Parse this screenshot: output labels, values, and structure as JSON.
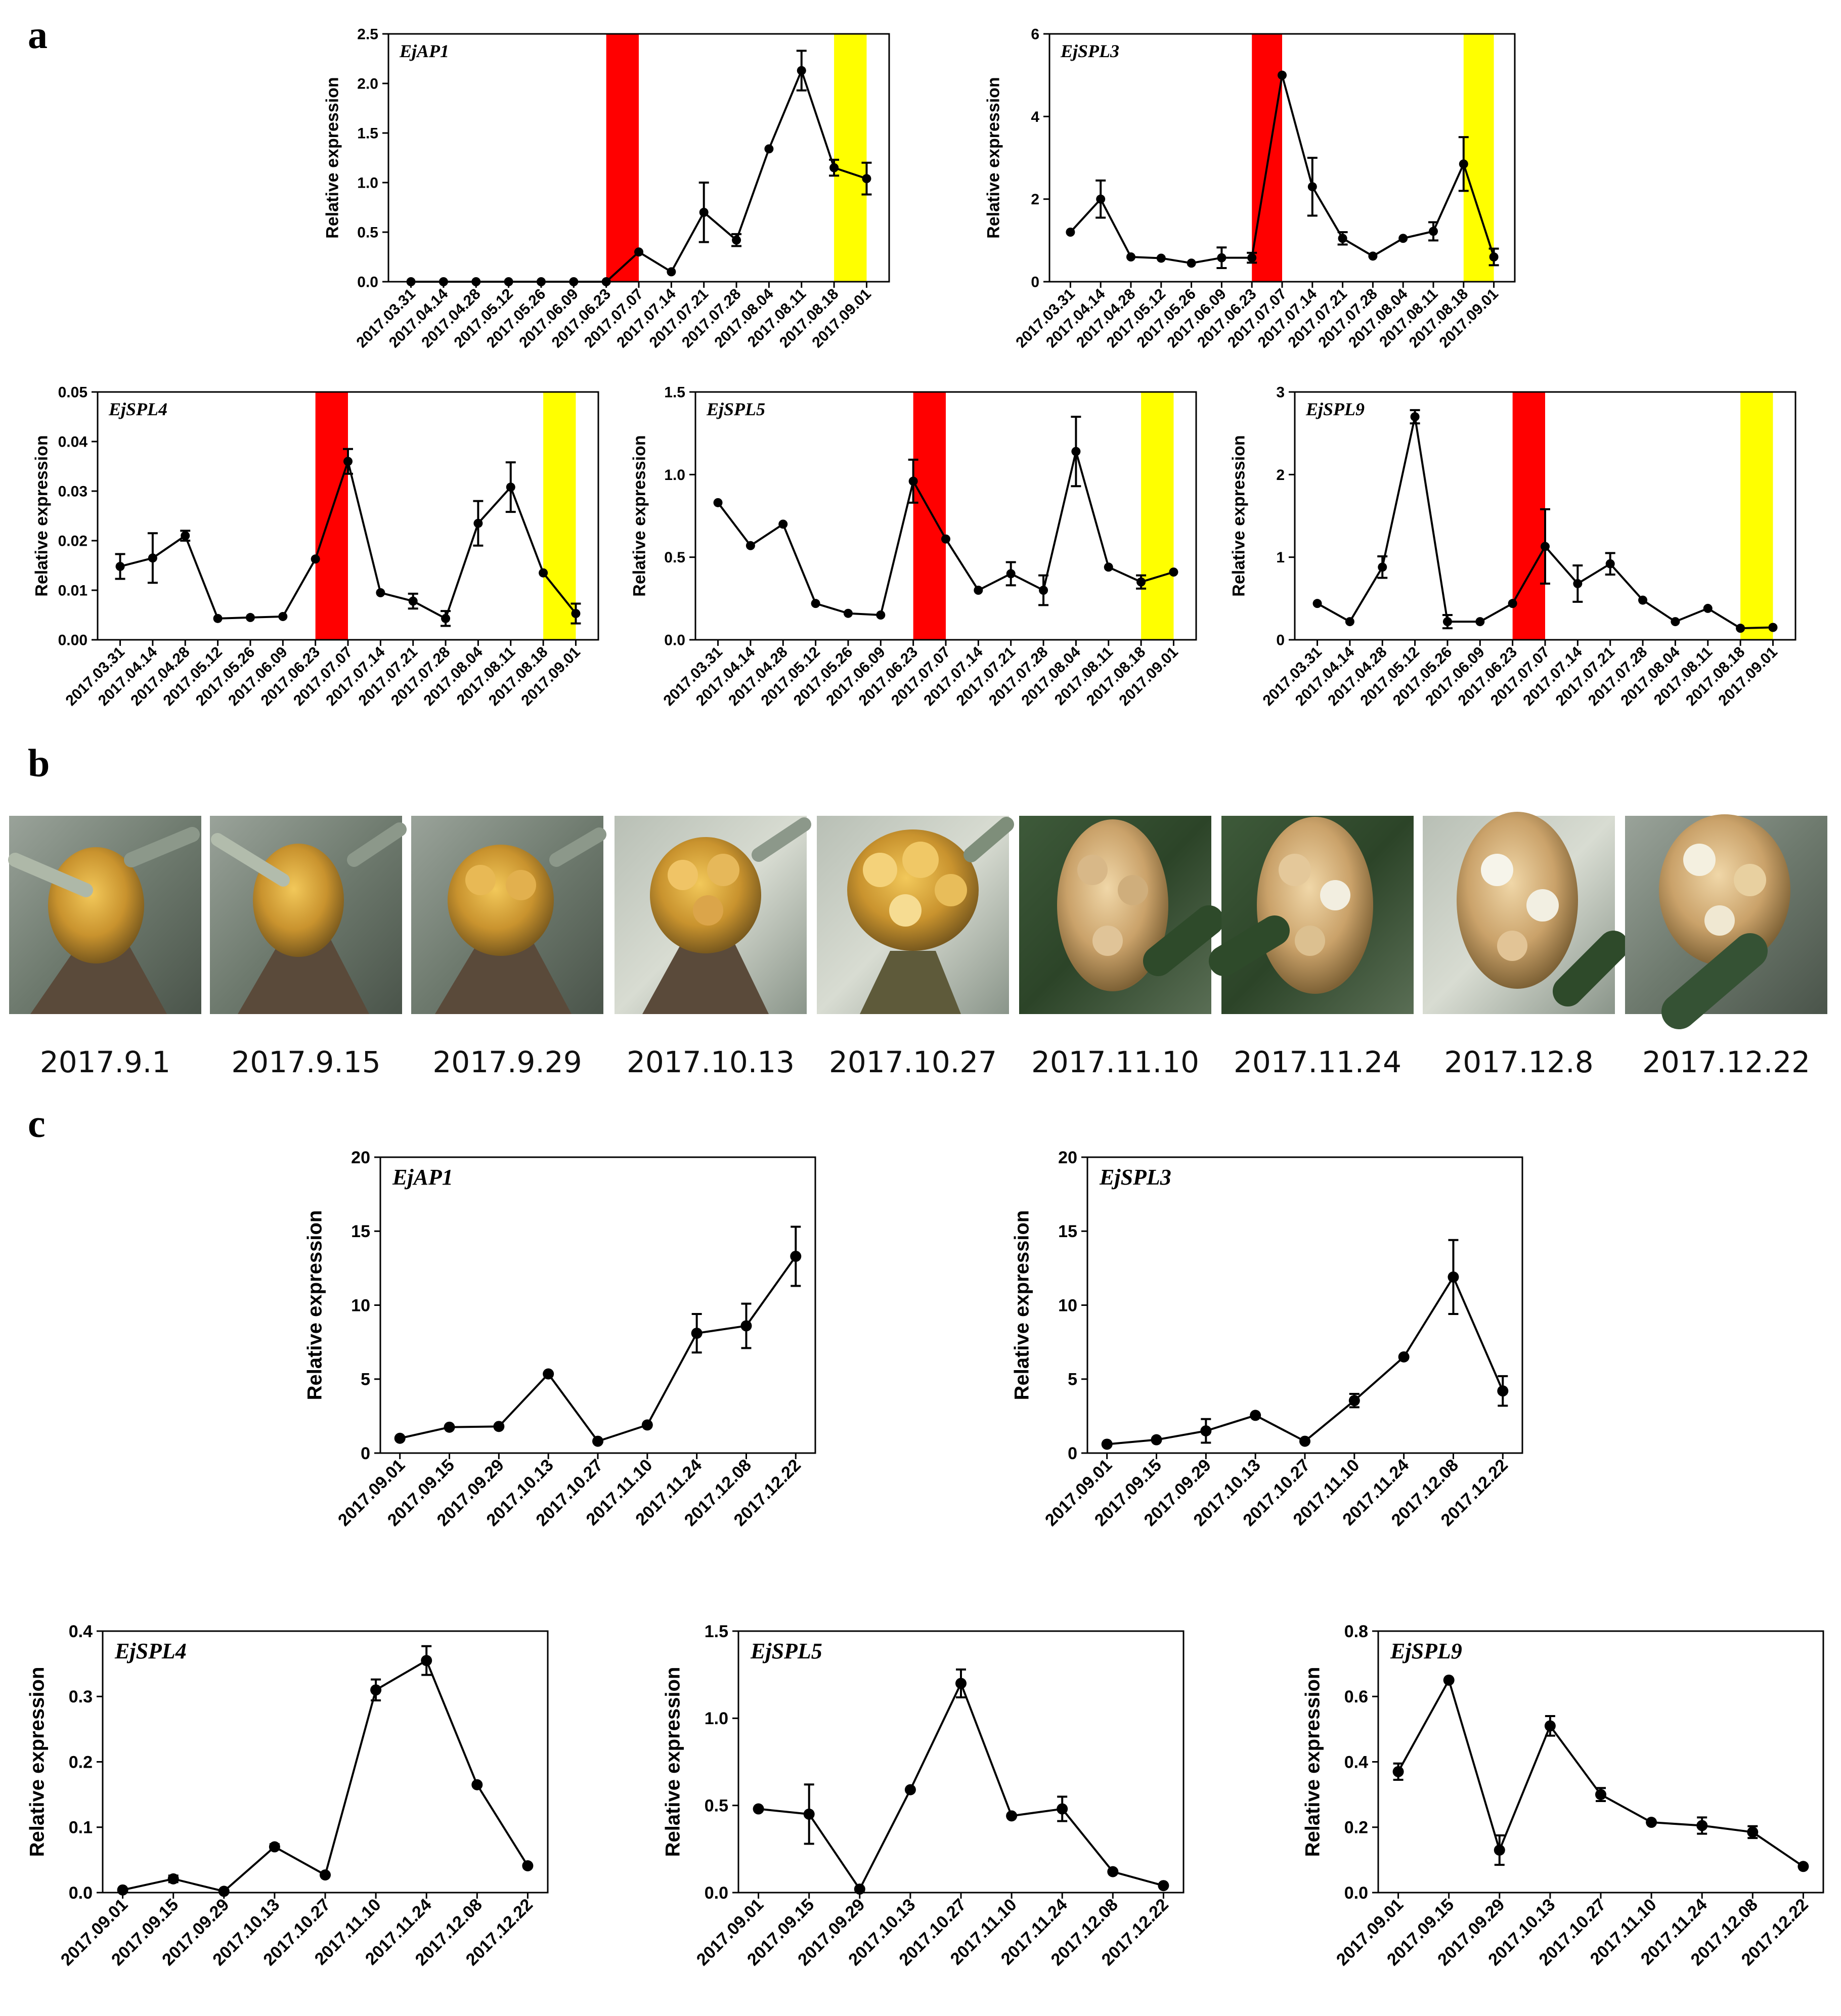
{
  "panel_labels": {
    "a": "a",
    "b": "b",
    "c": "c"
  },
  "colors": {
    "red_band": "#ff0000",
    "yellow_band": "#ffff00",
    "line": "#000000"
  },
  "ylabel": "Relative expression",
  "photos": {
    "captions": [
      "2017.9.1",
      "2017.9.15",
      "2017.9.29",
      "2017.10.13",
      "2017.10.27",
      "2017.11.10",
      "2017.11.24",
      "2017.12.8",
      "2017.12.22"
    ]
  },
  "chart_data": [
    {
      "panel": "a",
      "type": "line",
      "title": "EjAP1",
      "ylabel": "Relative expression",
      "categories": [
        "2017.03.31",
        "2017.04.14",
        "2017.04.28",
        "2017.05.12",
        "2017.05.26",
        "2017.06.09",
        "2017.06.23",
        "2017.07.07",
        "2017.07.14",
        "2017.07.21",
        "2017.07.28",
        "2017.08.04",
        "2017.08.11",
        "2017.08.18",
        "2017.09.01"
      ],
      "values": [
        0,
        0,
        0,
        0,
        0,
        0,
        0,
        0.3,
        0.1,
        0.7,
        0.42,
        1.34,
        2.13,
        1.15,
        1.04
      ],
      "errors": [
        0,
        0,
        0,
        0,
        0,
        0,
        0,
        0,
        0,
        0.3,
        0.06,
        0,
        0.2,
        0.08,
        0.16
      ],
      "ylim": [
        0,
        2.5
      ],
      "yticks": [
        "0.0",
        "0.5",
        "1.0",
        "1.5",
        "2.0",
        "2.5"
      ],
      "shaded": [
        {
          "color": "red",
          "from": "2017.06.23",
          "to": "2017.07.07"
        },
        {
          "color": "yellow",
          "from": "2017.08.18",
          "to": "2017.09.01"
        }
      ]
    },
    {
      "panel": "a",
      "type": "line",
      "title": "EjSPL3",
      "ylabel": "Relative expression",
      "categories": [
        "2017.03.31",
        "2017.04.14",
        "2017.04.28",
        "2017.05.12",
        "2017.05.26",
        "2017.06.09",
        "2017.06.23",
        "2017.07.07",
        "2017.07.14",
        "2017.07.21",
        "2017.07.28",
        "2017.08.04",
        "2017.08.11",
        "2017.08.18",
        "2017.09.01"
      ],
      "values": [
        1.2,
        2.0,
        0.6,
        0.57,
        0.45,
        0.58,
        0.58,
        5.0,
        2.3,
        1.05,
        0.62,
        1.05,
        1.22,
        2.85,
        0.6
      ],
      "errors": [
        0,
        0.45,
        0,
        0,
        0,
        0.25,
        0.12,
        0,
        0.7,
        0.15,
        0,
        0,
        0.22,
        0.65,
        0.2
      ],
      "ylim": [
        0,
        6
      ],
      "yticks": [
        "0",
        "2",
        "4",
        "6"
      ],
      "shaded": [
        {
          "color": "red",
          "from": "2017.06.23",
          "to": "2017.07.07"
        },
        {
          "color": "yellow",
          "from": "2017.08.18",
          "to": "2017.09.01"
        }
      ]
    },
    {
      "panel": "a",
      "type": "line",
      "title": "EjSPL4",
      "ylabel": "Relative expression",
      "categories": [
        "2017.03.31",
        "2017.04.14",
        "2017.04.28",
        "2017.05.12",
        "2017.05.26",
        "2017.06.09",
        "2017.06.23",
        "2017.07.07",
        "2017.07.14",
        "2017.07.21",
        "2017.07.28",
        "2017.08.04",
        "2017.08.11",
        "2017.08.18",
        "2017.09.01"
      ],
      "values": [
        0.0148,
        0.0165,
        0.021,
        0.0043,
        0.0045,
        0.0047,
        0.0163,
        0.036,
        0.0095,
        0.0078,
        0.0043,
        0.0235,
        0.0308,
        0.0135,
        0.0053
      ],
      "errors": [
        0.0025,
        0.005,
        0.001,
        0,
        0,
        0,
        0,
        0.0025,
        0,
        0.0015,
        0.0015,
        0.0045,
        0.005,
        0,
        0.002
      ],
      "ylim": [
        0,
        0.05
      ],
      "yticks": [
        "0.00",
        "0.01",
        "0.02",
        "0.03",
        "0.04",
        "0.05"
      ],
      "shaded": [
        {
          "color": "red",
          "from": "2017.06.23",
          "to": "2017.07.07"
        },
        {
          "color": "yellow",
          "from": "2017.08.18",
          "to": "2017.09.01"
        }
      ]
    },
    {
      "panel": "a",
      "type": "line",
      "title": "EjSPL5",
      "ylabel": "Relative expression",
      "categories": [
        "2017.03.31",
        "2017.04.14",
        "2017.04.28",
        "2017.05.12",
        "2017.05.26",
        "2017.06.09",
        "2017.06.23",
        "2017.07.07",
        "2017.07.14",
        "2017.07.21",
        "2017.07.28",
        "2017.08.04",
        "2017.08.11",
        "2017.08.18",
        "2017.09.01"
      ],
      "values": [
        0.83,
        0.57,
        0.7,
        0.22,
        0.16,
        0.15,
        0.96,
        0.61,
        0.3,
        0.4,
        0.3,
        1.14,
        0.44,
        0.35,
        0.41
      ],
      "errors": [
        0,
        0,
        0,
        0,
        0,
        0,
        0.13,
        0,
        0,
        0.07,
        0.09,
        0.21,
        0,
        0.04,
        0
      ],
      "ylim": [
        0,
        1.5
      ],
      "yticks": [
        "0.0",
        "0.5",
        "1.0",
        "1.5"
      ],
      "shaded": [
        {
          "color": "red",
          "from": "2017.06.23",
          "to": "2017.07.07"
        },
        {
          "color": "yellow",
          "from": "2017.08.18",
          "to": "2017.09.01"
        }
      ]
    },
    {
      "panel": "a",
      "type": "line",
      "title": "EjSPL9",
      "ylabel": "Relative expression",
      "categories": [
        "2017.03.31",
        "2017.04.14",
        "2017.04.28",
        "2017.05.12",
        "2017.05.26",
        "2017.06.09",
        "2017.06.23",
        "2017.07.07",
        "2017.07.14",
        "2017.07.21",
        "2017.07.28",
        "2017.08.04",
        "2017.08.11",
        "2017.08.18",
        "2017.09.01"
      ],
      "values": [
        0.44,
        0.22,
        0.88,
        2.7,
        0.22,
        0.22,
        0.44,
        1.13,
        0.68,
        0.92,
        0.48,
        0.22,
        0.38,
        0.14,
        0.15
      ],
      "errors": [
        0,
        0,
        0.13,
        0.08,
        0.08,
        0,
        0,
        0.45,
        0.22,
        0.13,
        0,
        0,
        0,
        0,
        0
      ],
      "ylim": [
        0,
        3
      ],
      "yticks": [
        "0",
        "1",
        "2",
        "3"
      ],
      "shaded": [
        {
          "color": "red",
          "from": "2017.06.23",
          "to": "2017.07.07"
        },
        {
          "color": "yellow",
          "from": "2017.08.18",
          "to": "2017.09.01"
        }
      ]
    },
    {
      "panel": "c",
      "type": "line",
      "title": "EjAP1",
      "ylabel": "Relative expression",
      "categories": [
        "2017.09.01",
        "2017.09.15",
        "2017.09.29",
        "2017.10.13",
        "2017.10.27",
        "2017.11.10",
        "2017.11.24",
        "2017.12.08",
        "2017.12.22"
      ],
      "values": [
        1.0,
        1.75,
        1.8,
        5.35,
        0.8,
        1.9,
        8.1,
        8.6,
        13.3
      ],
      "errors": [
        0,
        0,
        0,
        0,
        0,
        0,
        1.3,
        1.5,
        2.0
      ],
      "ylim": [
        0,
        20
      ],
      "yticks": [
        "0",
        "5",
        "10",
        "15",
        "20"
      ]
    },
    {
      "panel": "c",
      "type": "line",
      "title": "EjSPL3",
      "ylabel": "Relative expression",
      "categories": [
        "2017.09.01",
        "2017.09.15",
        "2017.09.29",
        "2017.10.13",
        "2017.10.27",
        "2017.11.10",
        "2017.11.24",
        "2017.12.08",
        "2017.12.22"
      ],
      "values": [
        0.6,
        0.9,
        1.5,
        2.55,
        0.8,
        3.55,
        6.5,
        11.9,
        4.2
      ],
      "errors": [
        0,
        0,
        0.8,
        0,
        0,
        0.45,
        0,
        2.5,
        1.0
      ],
      "ylim": [
        0,
        20
      ],
      "yticks": [
        "0",
        "5",
        "10",
        "15",
        "20"
      ]
    },
    {
      "panel": "c",
      "type": "line",
      "title": "EjSPL4",
      "ylabel": "Relative expression",
      "categories": [
        "2017.09.01",
        "2017.09.15",
        "2017.09.29",
        "2017.10.13",
        "2017.10.27",
        "2017.11.10",
        "2017.11.24",
        "2017.12.08",
        "2017.12.22"
      ],
      "values": [
        0.004,
        0.021,
        0.002,
        0.07,
        0.027,
        0.31,
        0.355,
        0.165,
        0.041
      ],
      "errors": [
        0,
        0.005,
        0,
        0.004,
        0,
        0.016,
        0.022,
        0,
        0
      ],
      "ylim": [
        0,
        0.4
      ],
      "yticks": [
        "0.0",
        "0.1",
        "0.2",
        "0.3",
        "0.4"
      ]
    },
    {
      "panel": "c",
      "type": "line",
      "title": "EjSPL5",
      "ylabel": "Relative expression",
      "categories": [
        "2017.09.01",
        "2017.09.15",
        "2017.09.29",
        "2017.10.13",
        "2017.10.27",
        "2017.11.10",
        "2017.11.24",
        "2017.12.08",
        "2017.12.22"
      ],
      "values": [
        0.48,
        0.45,
        0.02,
        0.59,
        1.2,
        0.44,
        0.48,
        0.12,
        0.04
      ],
      "errors": [
        0,
        0.17,
        0,
        0,
        0.08,
        0,
        0.07,
        0,
        0
      ],
      "ylim": [
        0,
        1.5
      ],
      "yticks": [
        "0.0",
        "0.5",
        "1.0",
        "1.5"
      ]
    },
    {
      "panel": "c",
      "type": "line",
      "title": "EjSPL9",
      "ylabel": "Relative expression",
      "categories": [
        "2017.09.01",
        "2017.09.15",
        "2017.09.29",
        "2017.10.13",
        "2017.10.27",
        "2017.11.10",
        "2017.11.24",
        "2017.12.08",
        "2017.12.22"
      ],
      "values": [
        0.37,
        0.65,
        0.13,
        0.51,
        0.3,
        0.215,
        0.205,
        0.185,
        0.08
      ],
      "errors": [
        0.025,
        0,
        0.045,
        0.03,
        0.02,
        0,
        0.025,
        0.018,
        0
      ],
      "ylim": [
        0,
        0.8
      ],
      "yticks": [
        "0.0",
        "0.2",
        "0.4",
        "0.6",
        "0.8"
      ]
    }
  ]
}
